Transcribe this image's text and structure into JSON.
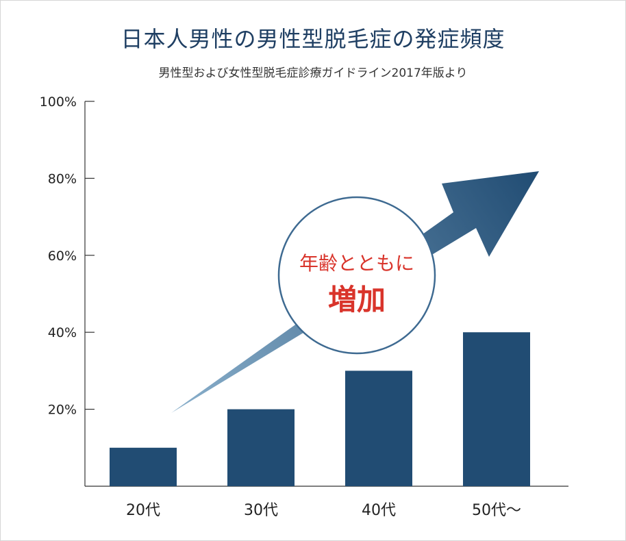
{
  "title": "日本人男性の男性型脱毛症の発症頻度",
  "subtitle": "男性型および女性型脱毛症診療ガイドライン2017年版より",
  "chart_data": {
    "type": "bar",
    "categories": [
      "20代",
      "30代",
      "40代",
      "50代〜"
    ],
    "values": [
      10,
      20,
      30,
      40
    ],
    "ylim": [
      0,
      100
    ],
    "yticks": [
      "20%",
      "40%",
      "60%",
      "80%",
      "100%"
    ],
    "grid": false,
    "bar_color": "#214c73"
  },
  "annotation": {
    "line1": "年齢とともに",
    "line2": "増加",
    "text_color": "#d9342b",
    "circle_border_color": "#3e6a91",
    "arrow_color_start": "#8ab0cc",
    "arrow_color_end": "#214c73"
  }
}
